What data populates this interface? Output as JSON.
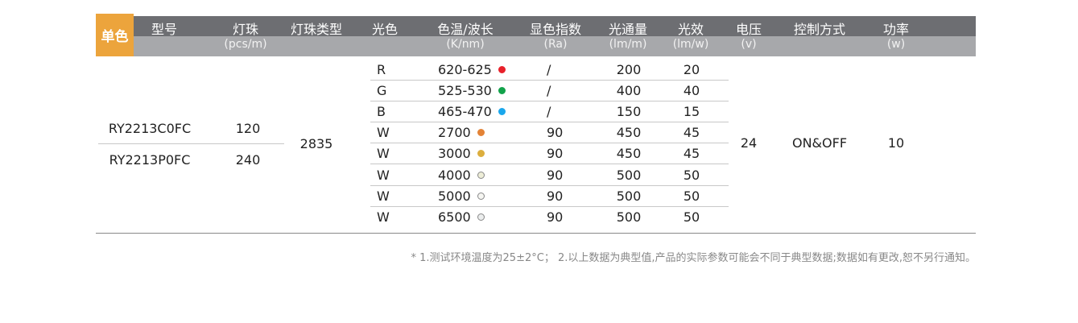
{
  "badge": "单色",
  "headers": [
    {
      "key": "model",
      "label": "型号",
      "unit": ""
    },
    {
      "key": "leds",
      "label": "灯珠",
      "unit": "(pcs/m)"
    },
    {
      "key": "led_type",
      "label": "灯珠类型",
      "unit": ""
    },
    {
      "key": "color",
      "label": "光色",
      "unit": ""
    },
    {
      "key": "cct",
      "label": "色温/波长",
      "unit": "(K/nm)"
    },
    {
      "key": "cri",
      "label": "显色指数",
      "unit": "(Ra)"
    },
    {
      "key": "flux",
      "label": "光通量",
      "unit": "(lm/m)"
    },
    {
      "key": "efficacy",
      "label": "光效",
      "unit": "(lm/w)"
    },
    {
      "key": "voltage",
      "label": "电压",
      "unit": "(v)"
    },
    {
      "key": "control",
      "label": "控制方式",
      "unit": ""
    },
    {
      "key": "power",
      "label": "功率",
      "unit": "(w)"
    }
  ],
  "models": [
    {
      "model": "RY2213C0FC",
      "leds": "120"
    },
    {
      "model": "RY2213P0FC",
      "leds": "240"
    }
  ],
  "led_type": "2835",
  "voltage": "24",
  "control": "ON&OFF",
  "power": "10",
  "rows": [
    {
      "color": "R",
      "cct": "620-625",
      "dot": "#e8202a",
      "dot_border": "#e8202a",
      "cri": "/",
      "flux": "200",
      "efficacy": "20"
    },
    {
      "color": "G",
      "cct": "525-530",
      "dot": "#12a24a",
      "dot_border": "#12a24a",
      "cri": "/",
      "flux": "400",
      "efficacy": "40"
    },
    {
      "color": "B",
      "cct": "465-470",
      "dot": "#1aa7ec",
      "dot_border": "#1aa7ec",
      "cri": "/",
      "flux": "150",
      "efficacy": "15"
    },
    {
      "color": "W",
      "cct": "2700",
      "dot": "#e38336",
      "dot_border": "#e38336",
      "cri": "90",
      "flux": "450",
      "efficacy": "45"
    },
    {
      "color": "W",
      "cct": "3000",
      "dot": "#dcae3e",
      "dot_border": "#dcae3e",
      "cri": "90",
      "flux": "450",
      "efficacy": "45"
    },
    {
      "color": "W",
      "cct": "4000",
      "dot": "#eeeed8",
      "dot_border": "#888888",
      "cri": "90",
      "flux": "500",
      "efficacy": "50"
    },
    {
      "color": "W",
      "cct": "5000",
      "dot": "#f6f6f2",
      "dot_border": "#888888",
      "cri": "90",
      "flux": "500",
      "efficacy": "50"
    },
    {
      "color": "W",
      "cct": "6500",
      "dot": "#eceeee",
      "dot_border": "#888888",
      "cri": "90",
      "flux": "500",
      "efficacy": "50"
    }
  ],
  "footnote": "* 1.测试环境温度为25±2°C； 2.以上数据为典型值,产品的实际参数可能会不同于典型数据;数据如有更改,恕不另行通知。"
}
